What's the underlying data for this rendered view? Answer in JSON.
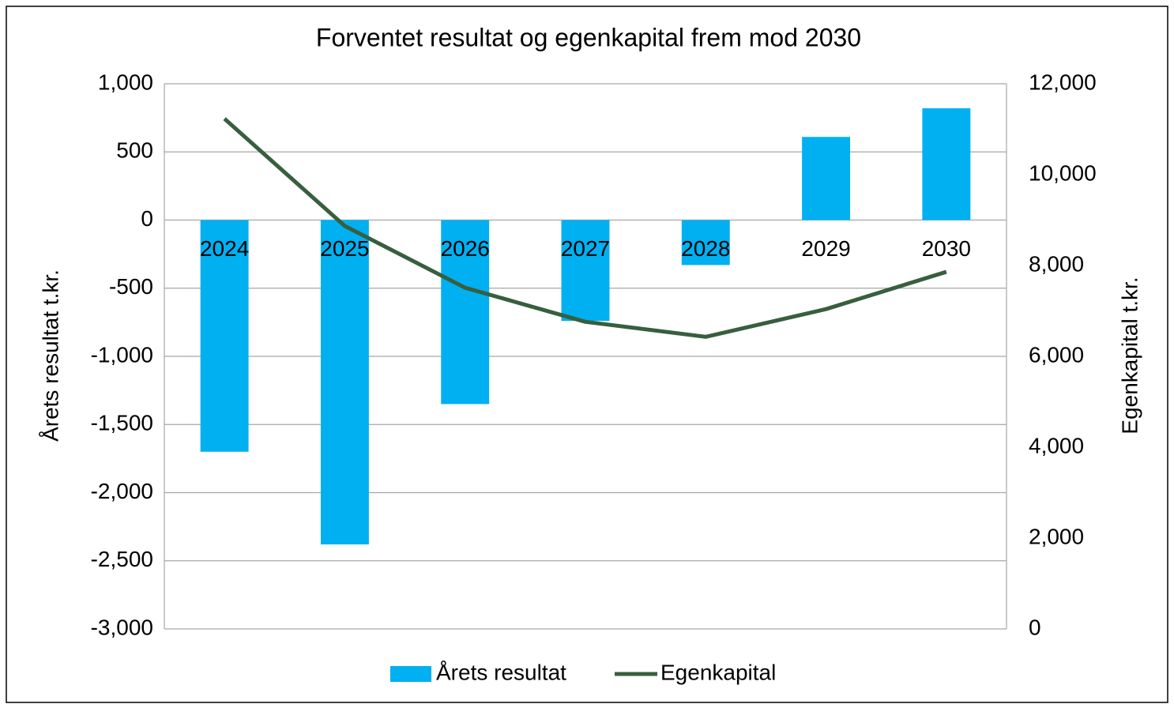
{
  "chart_data": {
    "type": "bar_line",
    "title": "Forventet resultat og egenkapital frem mod 2030",
    "ylabel": "Årets resultat t.kr.",
    "y2label": "Egenkapital t.kr.",
    "categories": [
      "2024",
      "2025",
      "2026",
      "2027",
      "2028",
      "2029",
      "2030"
    ],
    "series": [
      {
        "name": "Årets resultat",
        "type": "bar",
        "color": "#00b0f0",
        "values": [
          -1700,
          -2380,
          -1350,
          -740,
          -330,
          610,
          820
        ]
      },
      {
        "name": "Egenkapital",
        "type": "line",
        "axis": "y2",
        "color": "#375f3e",
        "values": [
          11230,
          8870,
          7510,
          6760,
          6430,
          7040,
          7860
        ]
      }
    ],
    "ylim": [
      -3000,
      1000
    ],
    "yticks": [
      {
        "value": -3000,
        "label": "-3,000"
      },
      {
        "value": -2500,
        "label": "-2,500"
      },
      {
        "value": -2000,
        "label": "-2,000"
      },
      {
        "value": -1500,
        "label": "-1,500"
      },
      {
        "value": -1000,
        "label": "-1,000"
      },
      -500,
      0,
      500,
      {
        "value": 1000,
        "label": "1,000"
      }
    ],
    "y2lim": [
      0,
      12000
    ],
    "y2ticks": [
      0,
      {
        "value": 2000,
        "label": "2,000"
      },
      {
        "value": 4000,
        "label": "4,000"
      },
      {
        "value": 6000,
        "label": "6,000"
      },
      {
        "value": 8000,
        "label": "8,000"
      },
      {
        "value": 10000,
        "label": "10,000"
      },
      {
        "value": 12000,
        "label": "12,000"
      }
    ],
    "grid": true,
    "legend": "bottom"
  }
}
